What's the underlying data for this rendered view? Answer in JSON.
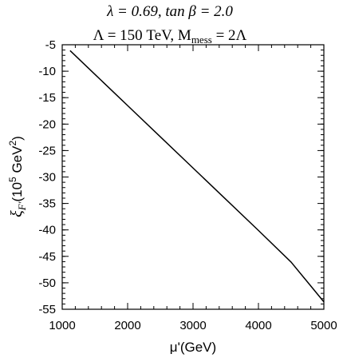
{
  "chart_data": {
    "type": "line",
    "title_line1": "λ = 0.69, tan β = 2.0",
    "title_line2": "Λ = 150 TeV,  M",
    "title_line2_sub": "mess",
    "title_line2_tail": " = 2Λ",
    "xlabel": "μ'(GeV)",
    "ylabel": "ξ_F'(10^5 GeV^2)",
    "xlim": [
      1000,
      5000
    ],
    "ylim": [
      -55,
      -5
    ],
    "x_ticks": [
      1000,
      2000,
      3000,
      4000,
      5000
    ],
    "y_ticks": [
      -5,
      -10,
      -15,
      -20,
      -25,
      -30,
      -35,
      -40,
      -45,
      -50,
      -55
    ],
    "x_minor_step": 200,
    "y_minor_step": 1,
    "grid": false,
    "series": [
      {
        "x": [
          1120,
          1500,
          2000,
          2500,
          3000,
          3500,
          4000,
          4500,
          5000
        ],
        "y": [
          -6.1,
          -10.6,
          -16.5,
          -22.4,
          -28.3,
          -34.2,
          -40.1,
          -46.1,
          -53.6
        ]
      }
    ],
    "line_color": "#000000"
  }
}
